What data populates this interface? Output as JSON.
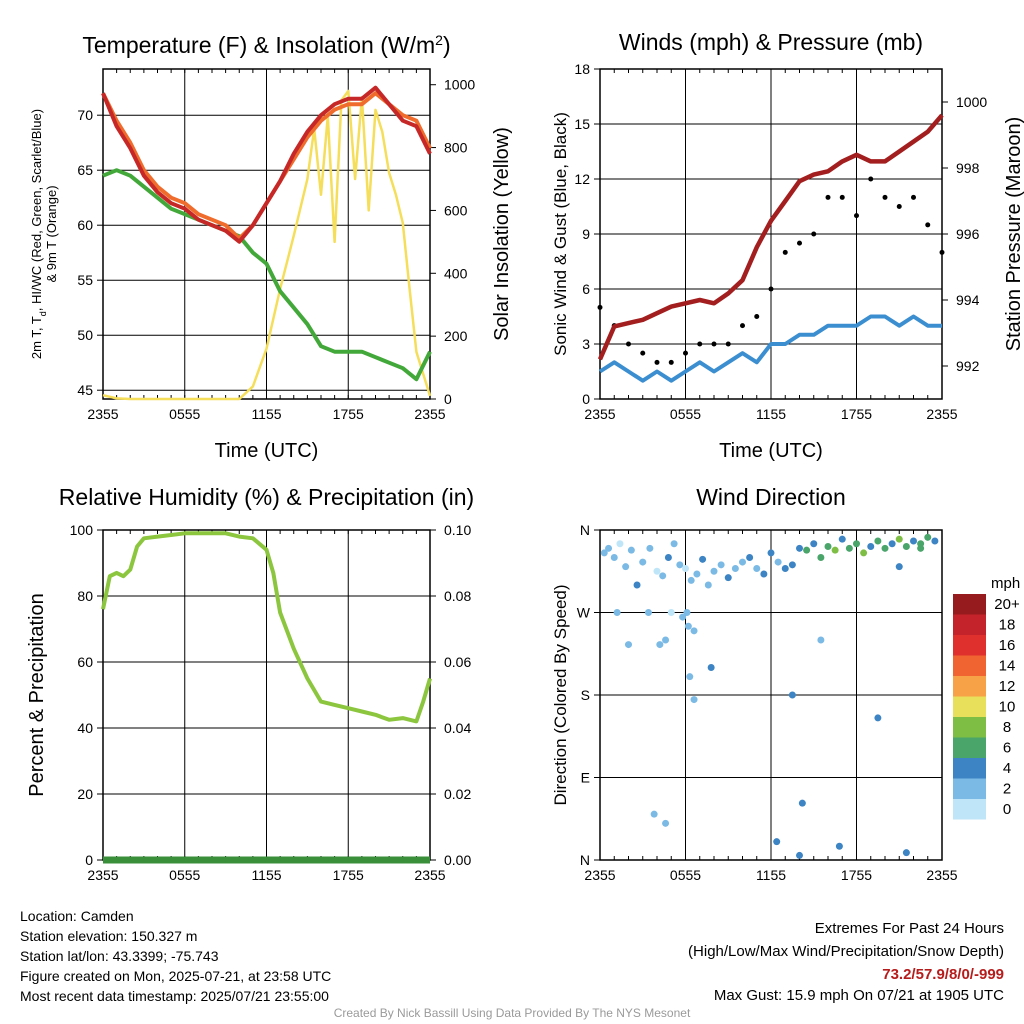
{
  "chart_data": [
    {
      "type": "line",
      "title": "Temperature (F) & Insolation (W/m",
      "title_sup": "2",
      "title_end": ")",
      "xlabel": "Time (UTC)",
      "ylabel_left": "2m T, T",
      "ylabel_left_sub": "d",
      "ylabel_left_end": ", HI/WC (Red, Green, Scarlet/Blue)",
      "ylabel_left_line2": "& 9m T (Orange)",
      "ylabel_right": "Solar Insolation (Yellow)",
      "x_ticks": [
        "2355",
        "0555",
        "1155",
        "1755",
        "2355"
      ],
      "x_range_hours": [
        0,
        24
      ],
      "ylim": [
        44.2,
        74.2
      ],
      "y_ticks": [
        45,
        50,
        55,
        60,
        65,
        70
      ],
      "y2lim": [
        0,
        1050
      ],
      "y2_ticks": [
        0,
        200,
        400,
        600,
        800,
        1000
      ],
      "series": [
        {
          "name": "2m T",
          "color": "#c62828",
          "axis": "left",
          "x": [
            0,
            1,
            2,
            3,
            4,
            5,
            6,
            7,
            8,
            9,
            10,
            11,
            12,
            13,
            14,
            15,
            16,
            17,
            18,
            19,
            20,
            21,
            22,
            23,
            24
          ],
          "y": [
            72,
            69,
            67,
            64.5,
            63,
            62,
            61.5,
            60.5,
            60,
            59.5,
            58.5,
            60,
            62,
            64,
            66.5,
            68.5,
            70,
            71,
            71.5,
            71.5,
            72.5,
            71,
            69.5,
            69,
            66.5
          ]
        },
        {
          "name": "9m T",
          "color": "#ef6c2c",
          "axis": "left",
          "x": [
            0,
            1,
            2,
            3,
            4,
            5,
            6,
            7,
            8,
            9,
            10,
            11,
            12,
            13,
            14,
            15,
            16,
            17,
            18,
            19,
            20,
            21,
            22,
            23,
            24
          ],
          "y": [
            72,
            69.5,
            67.5,
            65,
            63.5,
            62.5,
            62,
            61,
            60.5,
            60,
            58.8,
            60,
            62,
            64,
            66,
            68,
            69.5,
            70.5,
            71,
            71,
            72,
            71,
            70,
            69.5,
            67
          ]
        },
        {
          "name": "Td",
          "color": "#43a83a",
          "axis": "left",
          "x": [
            0,
            1,
            2,
            3,
            4,
            5,
            6,
            7,
            8,
            9,
            10,
            11,
            12,
            13,
            14,
            15,
            16,
            17,
            18,
            19,
            20,
            21,
            22,
            23,
            24
          ],
          "y": [
            64.5,
            65,
            64.5,
            63.5,
            62.5,
            61.5,
            61,
            60.5,
            60,
            59.5,
            59,
            57.5,
            56.5,
            54,
            52.5,
            51,
            49,
            48.5,
            48.5,
            48.5,
            48,
            47.5,
            47,
            46,
            48.5
          ]
        },
        {
          "name": "Solar",
          "color": "#f5de5a",
          "axis": "right",
          "x": [
            0,
            1,
            2,
            3,
            4,
            5,
            6,
            7,
            8,
            9,
            10,
            11,
            12,
            13,
            14,
            15,
            15.5,
            16,
            16.5,
            17,
            17.5,
            18,
            18.5,
            19,
            19.5,
            20,
            20.5,
            21,
            21.5,
            22,
            22.5,
            23,
            24
          ],
          "y": [
            12,
            2,
            0,
            0,
            0,
            0,
            0,
            0,
            0,
            0,
            0,
            40,
            160,
            350,
            520,
            700,
            860,
            650,
            900,
            500,
            950,
            980,
            700,
            960,
            600,
            920,
            850,
            720,
            650,
            560,
            350,
            150,
            10
          ]
        }
      ]
    },
    {
      "type": "scatter",
      "title": "Winds (mph) & Pressure (mb)",
      "xlabel": "Time (UTC)",
      "ylabel_left": "Sonic Wind & Gust (Blue, Black)",
      "ylabel_right": "Station Pressure (Maroon)",
      "x_ticks": [
        "2355",
        "0555",
        "1155",
        "1755",
        "2355"
      ],
      "x_range_hours": [
        0,
        24
      ],
      "ylim": [
        0,
        18
      ],
      "y_ticks": [
        0,
        3,
        6,
        9,
        12,
        15,
        18
      ],
      "y2lim": [
        991,
        1001
      ],
      "y2_ticks": [
        992,
        994,
        996,
        998,
        1000
      ],
      "series": [
        {
          "name": "Sonic Wind",
          "color": "#3b8ed0",
          "axis": "left",
          "x": [
            0,
            1,
            2,
            3,
            4,
            5,
            6,
            7,
            8,
            9,
            10,
            11,
            12,
            13,
            14,
            15,
            16,
            17,
            18,
            19,
            20,
            21,
            22,
            23,
            24
          ],
          "y": [
            1.5,
            2,
            1.5,
            1,
            1.5,
            1,
            1.5,
            2,
            1.5,
            2,
            2.5,
            2,
            3,
            3,
            3.5,
            3.5,
            4,
            4,
            4,
            4.5,
            4.5,
            4,
            4.5,
            4,
            4
          ]
        },
        {
          "name": "Gust",
          "color": "#000000",
          "axis": "left",
          "x": [
            0,
            1,
            2,
            3,
            4,
            5,
            6,
            7,
            8,
            9,
            10,
            11,
            12,
            13,
            14,
            15,
            16,
            17,
            18,
            19,
            20,
            21,
            22,
            23,
            24
          ],
          "y": [
            5,
            4,
            3,
            2.5,
            2,
            2,
            2.5,
            3,
            3,
            3,
            4,
            4.5,
            6,
            8,
            8.5,
            9,
            11,
            11,
            10,
            12,
            11,
            10.5,
            11,
            9.5,
            8
          ]
        },
        {
          "name": "Station Pressure",
          "color": "#a31e1e",
          "axis": "right",
          "x": [
            0,
            1,
            2,
            3,
            4,
            5,
            6,
            7,
            8,
            9,
            10,
            11,
            12,
            13,
            14,
            15,
            16,
            17,
            18,
            19,
            20,
            21,
            22,
            23,
            24
          ],
          "y": [
            992.2,
            993.2,
            993.3,
            993.4,
            993.6,
            993.8,
            993.9,
            994,
            993.9,
            994.2,
            994.6,
            995.6,
            996.4,
            997,
            997.6,
            997.8,
            997.9,
            998.2,
            998.4,
            998.2,
            998.2,
            998.5,
            998.8,
            999.1,
            999.6
          ]
        }
      ]
    },
    {
      "type": "line",
      "title": "Relative Humidity (%) & Precipitation (in)",
      "ylabel_left": "Percent & Precipitation",
      "x_ticks": [
        "2355",
        "0555",
        "1155",
        "1755",
        "2355"
      ],
      "x_range_hours": [
        0,
        24
      ],
      "ylim": [
        0,
        100
      ],
      "y_ticks": [
        0,
        20,
        40,
        60,
        80,
        100
      ],
      "y2lim": [
        0,
        0.1
      ],
      "y2_ticks": [
        "0.00",
        "0.02",
        "0.04",
        "0.06",
        "0.08",
        "0.10"
      ],
      "series": [
        {
          "name": "RH",
          "color": "#8cc63f",
          "axis": "left",
          "x": [
            0,
            0.5,
            1,
            1.5,
            2,
            2.5,
            3,
            4,
            5,
            6,
            7,
            8,
            9,
            10,
            11,
            12,
            12.5,
            13,
            14,
            15,
            16,
            17,
            18,
            19,
            20,
            21,
            22,
            23,
            23.5,
            24
          ],
          "y": [
            76,
            86,
            87,
            86,
            88,
            95,
            97.5,
            98,
            98.5,
            99,
            99,
            99,
            99,
            98,
            97.5,
            94,
            87,
            75,
            64,
            55,
            48,
            47,
            46,
            45,
            44,
            42.5,
            43,
            42,
            48,
            55
          ]
        },
        {
          "name": "Precipitation",
          "color": "#3a8f3a",
          "axis": "right",
          "x": [
            0,
            24
          ],
          "y": [
            0,
            0
          ]
        }
      ]
    },
    {
      "type": "scatter",
      "title": "Wind Direction",
      "ylabel_left": "Direction (Colored By Speed)",
      "x_ticks": [
        "2355",
        "0555",
        "1155",
        "1755",
        "2355"
      ],
      "x_range_hours": [
        0,
        24
      ],
      "ylim": [
        0,
        360
      ],
      "y_tick_values": [
        0,
        90,
        180,
        270,
        360
      ],
      "y_tick_labels": [
        "N",
        "E",
        "S",
        "W",
        "N"
      ],
      "legend_title": "mph",
      "legend_labels": [
        "20+",
        "18",
        "16",
        "14",
        "12",
        "10",
        "8",
        "6",
        "4",
        "2",
        "0"
      ],
      "legend_colors": [
        "#961b1e",
        "#c5232b",
        "#e0302e",
        "#f06432",
        "#f8a247",
        "#e8df5a",
        "#7fbe45",
        "#4aa56a",
        "#3c84c4",
        "#7bbae5",
        "#bfe6f8"
      ],
      "x": [
        0.3,
        0.6,
        1.0,
        1.4,
        1.8,
        2.2,
        2.6,
        3.0,
        3.5,
        4.0,
        4.4,
        4.8,
        5.2,
        5.6,
        6.0,
        6.4,
        6.8,
        7.2,
        7.6,
        8.0,
        8.5,
        9.0,
        9.5,
        10.0,
        10.5,
        11.0,
        11.5,
        12.0,
        12.5,
        13.0,
        13.5,
        14.0,
        14.5,
        15.0,
        15.5,
        16.0,
        16.5,
        17.0,
        17.5,
        18.0,
        18.5,
        19.0,
        19.5,
        20.0,
        20.5,
        21.0,
        21.5,
        22.0,
        22.5,
        23.0,
        23.5,
        1.2,
        2.0,
        3.4,
        4.2,
        4.6,
        5.0,
        5.8,
        6.2,
        6.6,
        7.8,
        13.5,
        14.0,
        15.5,
        19.5,
        21.0,
        22.5,
        3.8,
        4.6,
        6.1,
        6.3,
        6.6,
        12.4,
        14.2,
        16.8,
        21.5
      ],
      "y": [
        335,
        340,
        330,
        345,
        320,
        338,
        300,
        325,
        340,
        315,
        310,
        330,
        345,
        322,
        318,
        305,
        312,
        328,
        300,
        315,
        322,
        308,
        318,
        325,
        330,
        318,
        312,
        335,
        325,
        318,
        322,
        340,
        338,
        345,
        330,
        342,
        338,
        350,
        340,
        345,
        335,
        342,
        348,
        340,
        345,
        350,
        342,
        348,
        345,
        352,
        348,
        270,
        235,
        270,
        235,
        240,
        270,
        265,
        255,
        250,
        210,
        180,
        5,
        240,
        155,
        320,
        340,
        50,
        40,
        270,
        200,
        175,
        20,
        62,
        15,
        8
      ],
      "speed": [
        2,
        1,
        2,
        0,
        1,
        2,
        3,
        1,
        2,
        0,
        1,
        3,
        2,
        1,
        0,
        2,
        1,
        3,
        2,
        2,
        1,
        3,
        2,
        2,
        4,
        2,
        3,
        3,
        2,
        4,
        3,
        4,
        5,
        4,
        6,
        5,
        7,
        4,
        6,
        5,
        7,
        4,
        5,
        6,
        4,
        7,
        5,
        4,
        6,
        5,
        4,
        1,
        1,
        2,
        1,
        1,
        0,
        1,
        1,
        2,
        3,
        3,
        4,
        2,
        3,
        4,
        5,
        1,
        1,
        1,
        1,
        1,
        3,
        4,
        4,
        4
      ]
    }
  ],
  "info": {
    "location": "Location: Camden",
    "elevation": "Station elevation: 150.327 m",
    "latlon": "Station lat/lon: 43.3399; -75.743",
    "created": "Figure created on Mon, 2025-07-21, at 23:58 UTC",
    "recent": "Most recent data timestamp: 2025/07/21 23:55:00"
  },
  "extremes": {
    "title": "Extremes For Past 24 Hours",
    "subtitle": "(High/Low/Max Wind/Precipitation/Snow Depth)",
    "values": "73.2/57.9/8/0/-999",
    "gust": "Max Gust: 15.9 mph On 07/21 at 1905 UTC"
  },
  "footer": {
    "credit": "Created By Nick Bassill Using Data Provided By The NYS Mesonet"
  }
}
